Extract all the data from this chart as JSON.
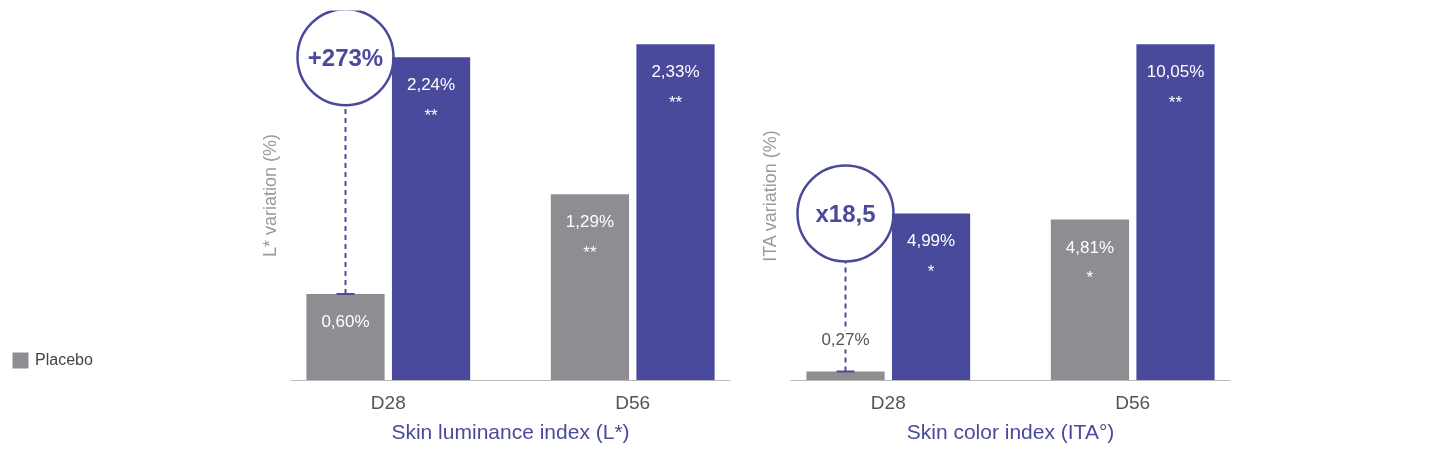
{
  "chart_data": [
    {
      "type": "bar",
      "xlabel": "Skin luminance index (L*)",
      "ylabel": "L* variation (%)",
      "categories": [
        "D28",
        "D56"
      ],
      "series": [
        {
          "name": "Placebo",
          "color": "#8e8e92",
          "values": [
            0.6,
            1.29
          ],
          "value_labels": [
            "0,60%",
            "1,29%\n**"
          ]
        },
        {
          "color": "#4a4a9c",
          "values": [
            2.24,
            2.33
          ],
          "value_labels": [
            "2,24%\n**",
            "2,33%\n**"
          ]
        }
      ],
      "annotations": [
        "+273%"
      ],
      "legend": "left",
      "grid": false
    },
    {
      "type": "bar",
      "xlabel": "Skin color index (ITA°)",
      "ylabel": "ITA variation (%)",
      "categories": [
        "D28",
        "D56"
      ],
      "series": [
        {
          "color": "#8e8e92",
          "values": [
            0.27,
            4.81
          ],
          "value_labels": [
            "0,27%",
            "4,81%\n*"
          ]
        },
        {
          "color": "#4a4a9c",
          "values": [
            4.99,
            10.05
          ],
          "value_labels": [
            "4,99%\n*",
            "10,05%\n**"
          ]
        }
      ],
      "annotations": [
        "x18,5"
      ],
      "grid": false
    }
  ]
}
